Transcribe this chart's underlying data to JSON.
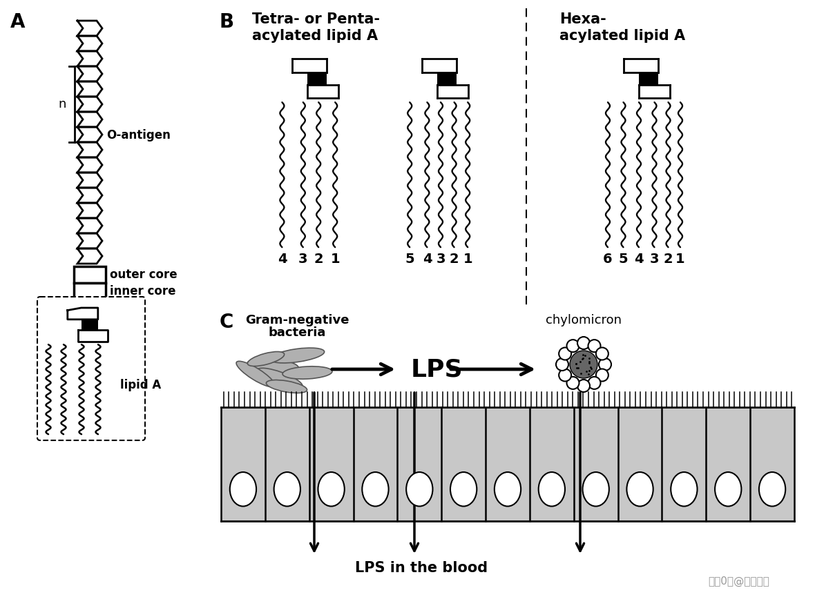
{
  "bg_color": "#ffffff",
  "panel_A_label": "A",
  "panel_B_label": "B",
  "panel_C_label": "C",
  "o_antigen_label": "O-antigen",
  "n_label": "n",
  "outer_core_label": "outer core",
  "inner_core_label": "inner core",
  "lipid_A_label": "lipid A",
  "C_bacteria_label": "Gram-negative\nbacteria",
  "C_LPS_label": "LPS",
  "C_chylomicron_label": "chylomicron",
  "C_blood_label": "LPS in the blood",
  "watermark": "搜狙0号@谷禾健康"
}
